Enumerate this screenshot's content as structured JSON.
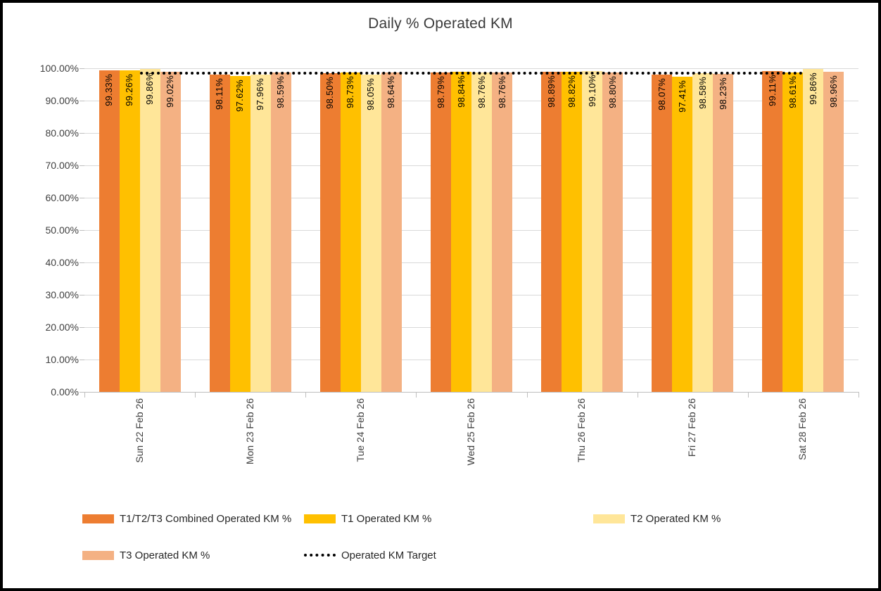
{
  "chart_data": {
    "type": "bar",
    "title": "Daily % Operated KM",
    "categories": [
      "Sun 22 Feb 26",
      "Mon 23 Feb 26",
      "Tue 24 Feb 26",
      "Wed 25 Feb 26",
      "Thu 26 Feb 26",
      "Fri 27 Feb 26",
      "Sat 28 Feb 26"
    ],
    "series": [
      {
        "name": "T1/T2/T3 Combined Operated KM %",
        "color": "#ED7D31",
        "values": [
          99.33,
          98.11,
          98.5,
          98.79,
          98.89,
          98.07,
          99.11
        ]
      },
      {
        "name": "T1 Operated KM %",
        "color": "#FFC000",
        "values": [
          99.26,
          97.62,
          98.73,
          98.84,
          98.82,
          97.41,
          98.61
        ]
      },
      {
        "name": "T2 Operated KM %",
        "color": "#FFE699",
        "values": [
          99.86,
          97.96,
          98.05,
          98.76,
          99.1,
          98.58,
          99.86
        ]
      },
      {
        "name": "T3 Operated KM %",
        "color": "#F4B183",
        "values": [
          99.02,
          98.59,
          98.64,
          98.76,
          98.8,
          98.23,
          98.96
        ]
      }
    ],
    "target_line": {
      "name": "Operated KM Target",
      "value": 98.5,
      "color": "#000000",
      "style": "dotted"
    },
    "ylim": [
      0,
      100
    ],
    "y_tick_step": 10,
    "y_tick_labels": [
      "0.00%",
      "10.00%",
      "20.00%",
      "30.00%",
      "40.00%",
      "50.00%",
      "60.00%",
      "70.00%",
      "80.00%",
      "90.00%",
      "100.00%"
    ],
    "xlabel": "",
    "ylabel": "",
    "grid": true,
    "legend_position": "bottom",
    "data_labels": "rotated-90-inside-end",
    "style_colors": {
      "gridline": "#D9D9D9",
      "axis": "#BFBFBF",
      "frame_border": "#000000",
      "background": "#FFFFFF"
    }
  }
}
